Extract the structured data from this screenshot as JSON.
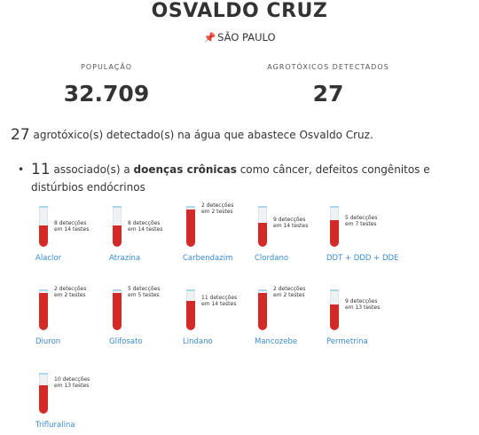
{
  "header": {
    "city": "OSVALDO CRUZ",
    "state": "SÃO PAULO",
    "pin_icon": "pushpin-icon"
  },
  "stats": {
    "population_label": "POPULAÇÃO",
    "population_value": "32.709",
    "pesticides_label": "AGROTÓXICOS DETECTADOS",
    "pesticides_value": "27"
  },
  "summary": {
    "count": "27",
    "text": "agrotóxico(s) detectado(s) na água que abastece Osvaldo Cruz."
  },
  "chronic": {
    "count": "11",
    "pre": "associado(s) a",
    "bold": "doenças crônicas",
    "post": "como câncer, defeitos congênitos e distúrbios endócrinos"
  },
  "pesticides": [
    {
      "name": "Alaclor",
      "detections_text": "8 detecções",
      "tests_text": "em 14 testes",
      "detections": 8,
      "tests": 14
    },
    {
      "name": "Atrazina",
      "detections_text": "8 detecções",
      "tests_text": "em 14 testes",
      "detections": 8,
      "tests": 14
    },
    {
      "name": "Carbendazim",
      "detections_text": "2 detecções",
      "tests_text": "em 2 testes",
      "detections": 2,
      "tests": 2
    },
    {
      "name": "Clordano",
      "detections_text": "9 detecções",
      "tests_text": "em 14 testes",
      "detections": 9,
      "tests": 14
    },
    {
      "name": "DDT + DDD + DDE",
      "detections_text": "5 detecções",
      "tests_text": "em 7 testes",
      "detections": 5,
      "tests": 7
    },
    {
      "name": "Diuron",
      "detections_text": "2 detecções",
      "tests_text": "em 2 testes",
      "detections": 2,
      "tests": 2
    },
    {
      "name": "Glifosato",
      "detections_text": "5 detecções",
      "tests_text": "em 5 testes",
      "detections": 5,
      "tests": 5
    },
    {
      "name": "Lindano",
      "detections_text": "11 detecções",
      "tests_text": "em 14 testes",
      "detections": 11,
      "tests": 14
    },
    {
      "name": "Mancozebe",
      "detections_text": "2 detecções",
      "tests_text": "em 2 testes",
      "detections": 2,
      "tests": 2
    },
    {
      "name": "Permetrina",
      "detections_text": "9 detecções",
      "tests_text": "em 13 testes",
      "detections": 9,
      "tests": 13
    },
    {
      "name": "Trifluralina",
      "detections_text": "10 detecções",
      "tests_text": "em 13 testes",
      "detections": 10,
      "tests": 13
    }
  ],
  "colors": {
    "tube_fill": "#d42a27",
    "tube_cap": "#a8d8ea",
    "link": "#3b8bd0"
  }
}
